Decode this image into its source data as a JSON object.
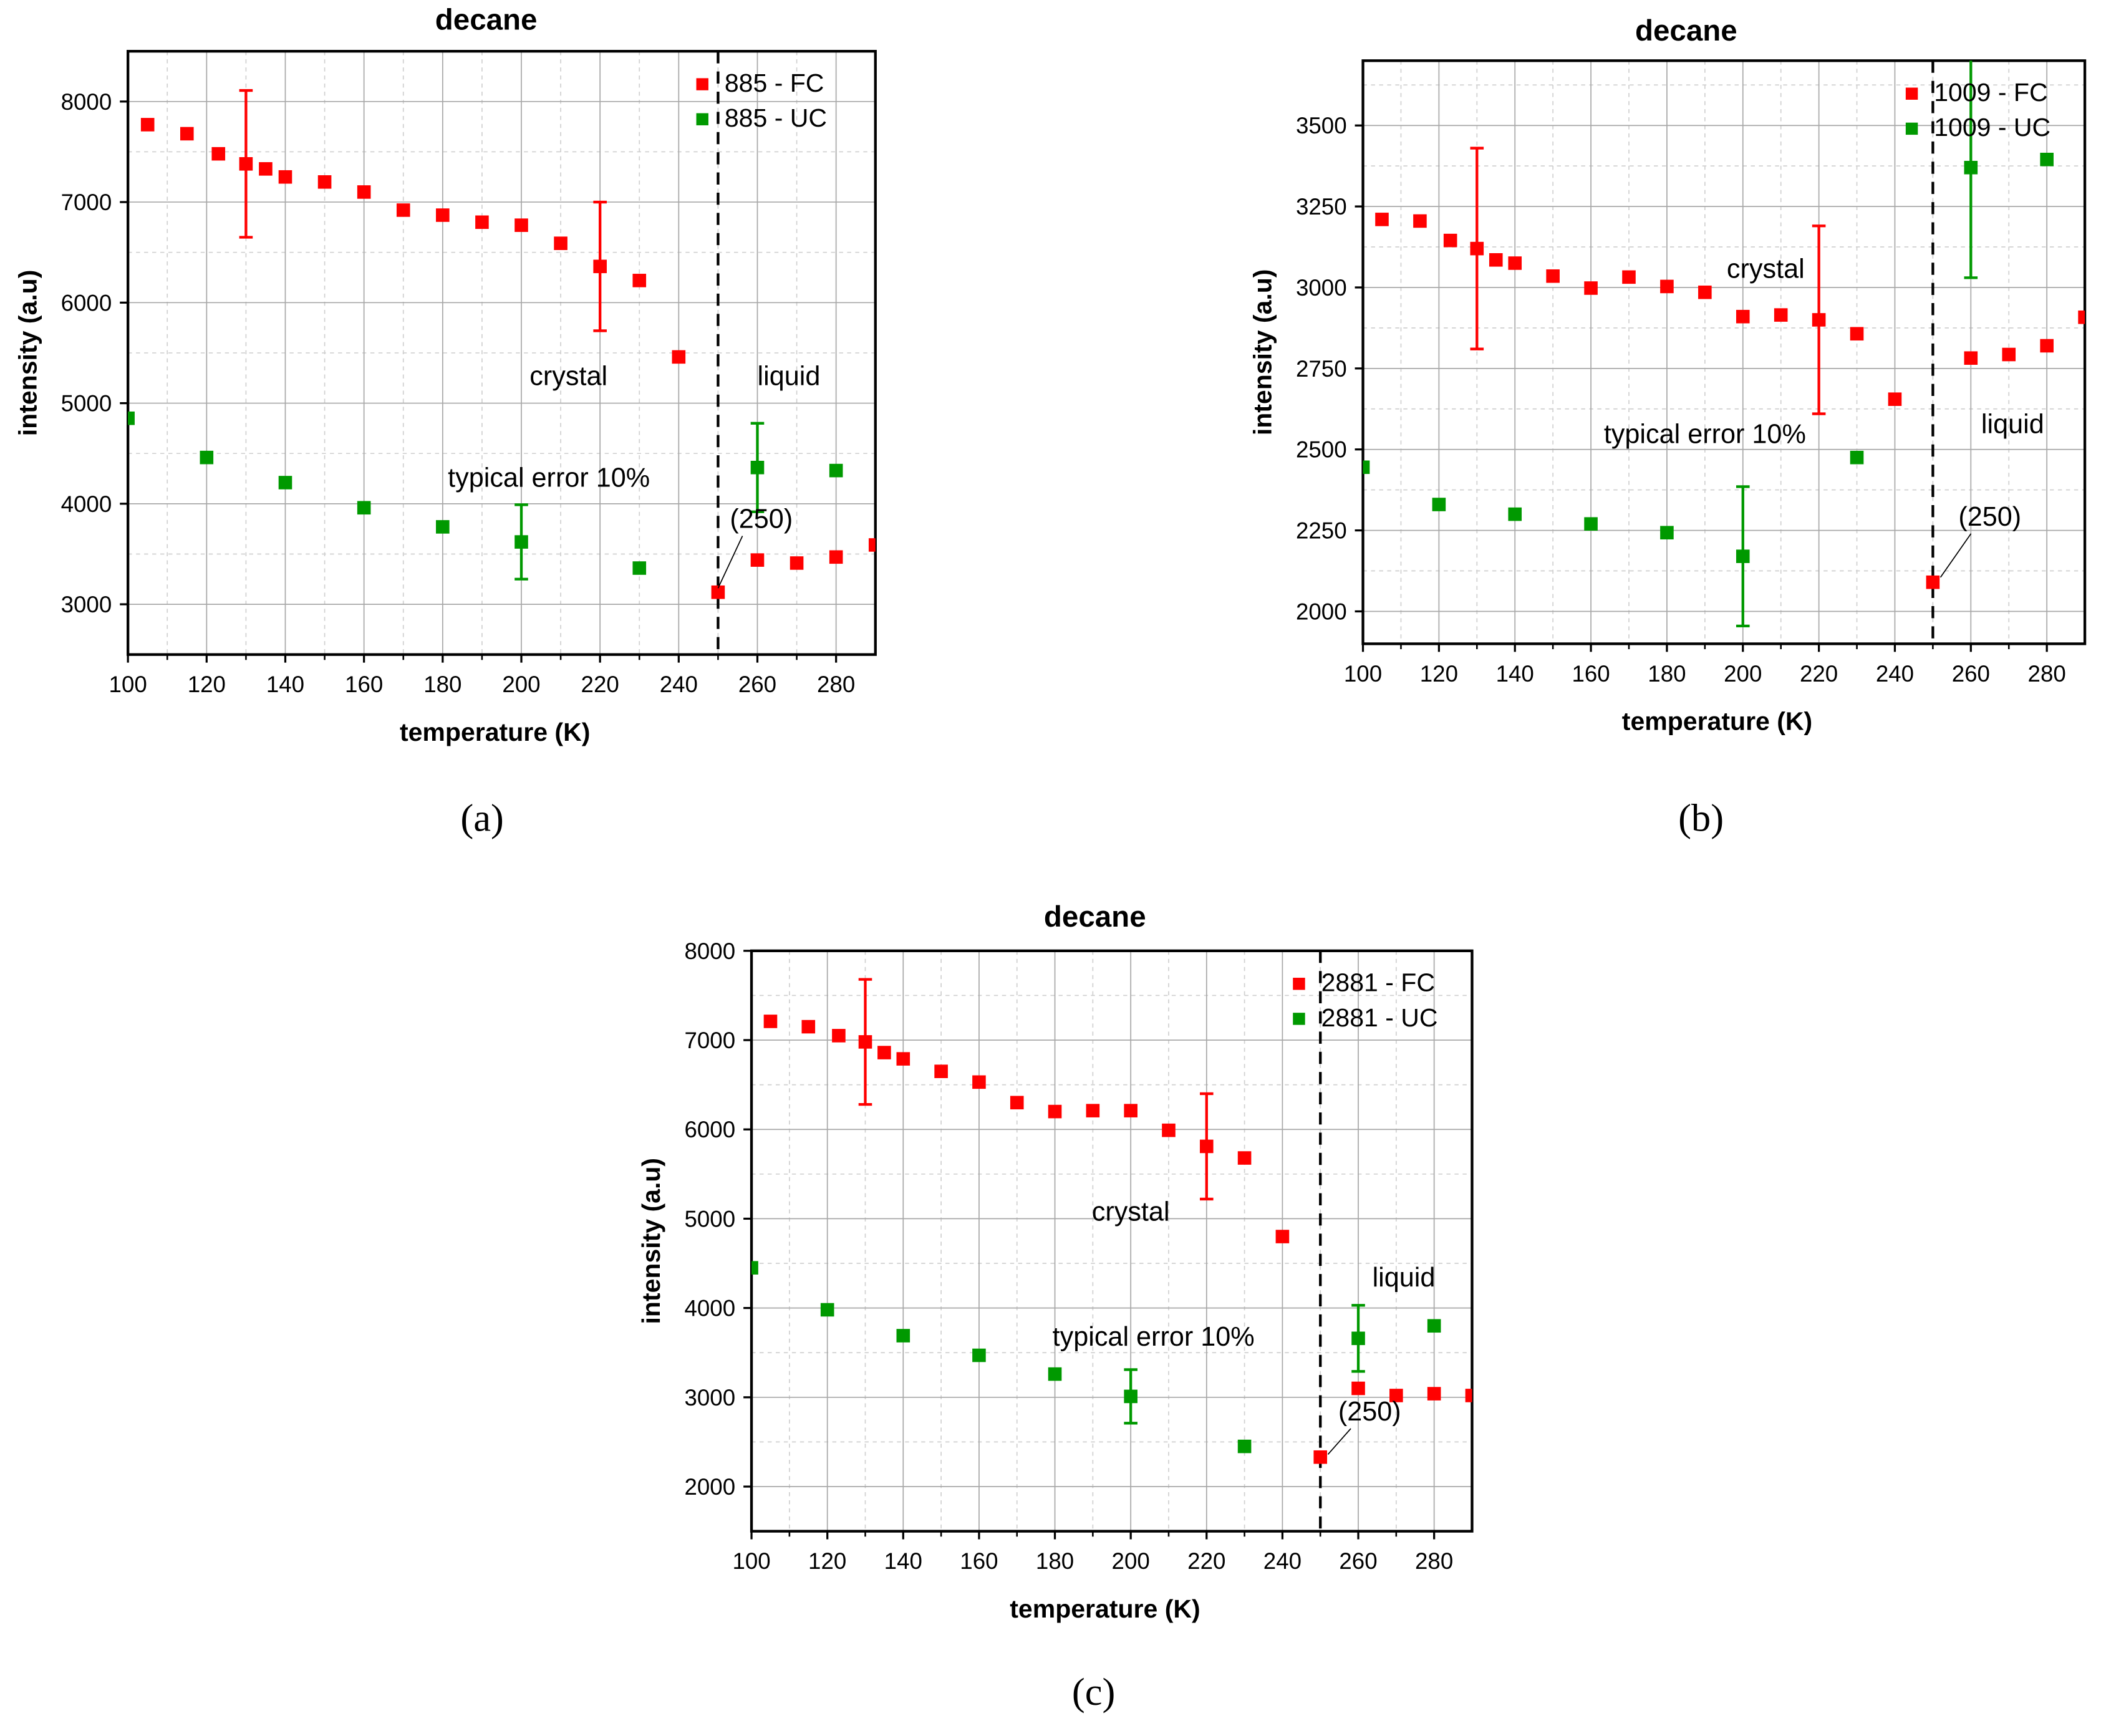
{
  "chart_data": [
    {
      "panel": "(a)",
      "type": "scatter",
      "title": "decane",
      "xlabel": "temperature (K)",
      "ylabel": "intensity (a.u)",
      "xlim": [
        100,
        290
      ],
      "ylim": [
        2500,
        8500
      ],
      "xticks": [
        100,
        120,
        140,
        160,
        180,
        200,
        220,
        240,
        260,
        280
      ],
      "yticks": [
        3000,
        4000,
        5000,
        6000,
        7000,
        8000
      ],
      "grid": true,
      "legend_position": "top-right",
      "vline": 250,
      "series": [
        {
          "name": "885 - FC",
          "color": "#ff0000",
          "points": [
            [
              105,
              7770
            ],
            [
              115,
              7680
            ],
            [
              123,
              7480
            ],
            [
              130,
              7380
            ],
            [
              135,
              7330
            ],
            [
              140,
              7250
            ],
            [
              150,
              7200
            ],
            [
              160,
              7100
            ],
            [
              170,
              6920
            ],
            [
              180,
              6870
            ],
            [
              190,
              6800
            ],
            [
              200,
              6770
            ],
            [
              210,
              6590
            ],
            [
              220,
              6360
            ],
            [
              230,
              6220
            ],
            [
              240,
              5460
            ],
            [
              250,
              3120
            ],
            [
              260,
              3440
            ],
            [
              270,
              3410
            ],
            [
              280,
              3470
            ],
            [
              290,
              3590
            ]
          ],
          "errors": [
            [
              130,
              7380,
              730
            ],
            [
              220,
              6360,
              640
            ]
          ]
        },
        {
          "name": "885 - UC",
          "color": "#009900",
          "points": [
            [
              100,
              4850
            ],
            [
              120,
              4460
            ],
            [
              140,
              4210
            ],
            [
              160,
              3960
            ],
            [
              180,
              3770
            ],
            [
              200,
              3620
            ],
            [
              230,
              3360
            ],
            [
              260,
              4360
            ],
            [
              280,
              4330
            ]
          ],
          "errors": [
            [
              200,
              3620,
              370
            ],
            [
              260,
              4360,
              440
            ]
          ]
        }
      ],
      "annotations": [
        {
          "text": "crystal",
          "at": [
            212,
            5180
          ]
        },
        {
          "text": "liquid",
          "at": [
            268,
            5180
          ]
        },
        {
          "text": "typical error 10%",
          "at": [
            207,
            4170
          ]
        },
        {
          "text": "(250)",
          "at": [
            261,
            3760
          ],
          "pointer": [
            250,
            3160
          ]
        }
      ]
    },
    {
      "panel": "(b)",
      "type": "scatter",
      "title": "decane",
      "xlabel": "temperature (K)",
      "ylabel": "intensity (a.u)",
      "xlim": [
        100,
        290
      ],
      "ylim": [
        1900,
        3700
      ],
      "xticks": [
        100,
        120,
        140,
        160,
        180,
        200,
        220,
        240,
        260,
        280
      ],
      "yticks": [
        2000,
        2250,
        2500,
        2750,
        3000,
        3250,
        3500
      ],
      "grid": true,
      "legend_position": "top-right",
      "vline": 250,
      "series": [
        {
          "name": "1009 - FC",
          "color": "#ff0000",
          "points": [
            [
              105,
              3210
            ],
            [
              115,
              3205
            ],
            [
              123,
              3145
            ],
            [
              130,
              3120
            ],
            [
              135,
              3085
            ],
            [
              140,
              3075
            ],
            [
              150,
              3035
            ],
            [
              160,
              2998
            ],
            [
              170,
              3032
            ],
            [
              180,
              3003
            ],
            [
              190,
              2985
            ],
            [
              200,
              2910
            ],
            [
              210,
              2915
            ],
            [
              220,
              2900
            ],
            [
              230,
              2857
            ],
            [
              240,
              2655
            ],
            [
              250,
              2090
            ],
            [
              260,
              2782
            ],
            [
              270,
              2793
            ],
            [
              280,
              2820
            ],
            [
              290,
              2908
            ]
          ],
          "errors": [
            [
              130,
              3120,
              310
            ],
            [
              220,
              2900,
              290
            ]
          ]
        },
        {
          "name": "1009 - UC",
          "color": "#009900",
          "points": [
            [
              100,
              2445
            ],
            [
              120,
              2330
            ],
            [
              140,
              2300
            ],
            [
              160,
              2270
            ],
            [
              180,
              2243
            ],
            [
              200,
              2170
            ],
            [
              230,
              2475
            ],
            [
              260,
              3370
            ],
            [
              280,
              3395
            ]
          ],
          "errors": [
            [
              200,
              2170,
              215
            ],
            [
              260,
              3370,
              340
            ]
          ]
        }
      ],
      "annotations": [
        {
          "text": "crystal",
          "at": [
            206,
            3030
          ]
        },
        {
          "text": "liquid",
          "at": [
            271,
            2550
          ]
        },
        {
          "text": "typical error 10%",
          "at": [
            190,
            2520
          ]
        },
        {
          "text": "(250)",
          "at": [
            265,
            2265
          ],
          "pointer": [
            252,
            2105
          ]
        }
      ]
    },
    {
      "panel": "(c)",
      "type": "scatter",
      "title": "decane",
      "xlabel": "temperature (K)",
      "ylabel": "intensity (a.u)",
      "xlim": [
        100,
        290
      ],
      "ylim": [
        1500,
        8000
      ],
      "xticks": [
        100,
        120,
        140,
        160,
        180,
        200,
        220,
        240,
        260,
        280
      ],
      "yticks": [
        2000,
        3000,
        4000,
        5000,
        6000,
        7000,
        8000
      ],
      "grid": true,
      "legend_position": "top-right",
      "vline": 250,
      "series": [
        {
          "name": "2881 - FC",
          "color": "#ff0000",
          "points": [
            [
              105,
              7210
            ],
            [
              115,
              7150
            ],
            [
              123,
              7050
            ],
            [
              130,
              6980
            ],
            [
              135,
              6860
            ],
            [
              140,
              6790
            ],
            [
              150,
              6650
            ],
            [
              160,
              6530
            ],
            [
              170,
              6300
            ],
            [
              180,
              6200
            ],
            [
              190,
              6210
            ],
            [
              200,
              6210
            ],
            [
              210,
              5990
            ],
            [
              220,
              5810
            ],
            [
              230,
              5680
            ],
            [
              240,
              4800
            ],
            [
              250,
              2330
            ],
            [
              260,
              3100
            ],
            [
              270,
              3020
            ],
            [
              280,
              3040
            ],
            [
              290,
              3020
            ]
          ],
          "errors": [
            [
              130,
              6980,
              700
            ],
            [
              220,
              5810,
              590
            ]
          ]
        },
        {
          "name": "2881 - UC",
          "color": "#009900",
          "points": [
            [
              100,
              4450
            ],
            [
              120,
              3980
            ],
            [
              140,
              3690
            ],
            [
              160,
              3470
            ],
            [
              180,
              3260
            ],
            [
              200,
              3010
            ],
            [
              230,
              2450
            ],
            [
              260,
              3660
            ],
            [
              280,
              3800
            ]
          ],
          "errors": [
            [
              200,
              3010,
              300
            ],
            [
              260,
              3660,
              370
            ]
          ]
        }
      ],
      "annotations": [
        {
          "text": "crystal",
          "at": [
            200,
            4980
          ]
        },
        {
          "text": "liquid",
          "at": [
            272,
            4240
          ]
        },
        {
          "text": "typical error 10%",
          "at": [
            206,
            3580
          ]
        },
        {
          "text": "(250)",
          "at": [
            263,
            2740
          ],
          "pointer": [
            252,
            2360
          ]
        }
      ]
    }
  ]
}
